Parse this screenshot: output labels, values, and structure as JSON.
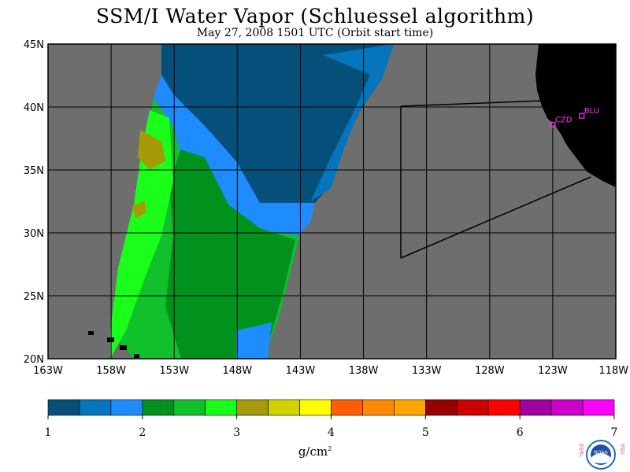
{
  "title": "SSM/I Water Vapor (Schluessel algorithm)",
  "subtitle": "May 27, 2008  1501 UTC  (Orbit start time)",
  "map": {
    "lat_labels": [
      "45N",
      "40N",
      "35N",
      "30N",
      "25N",
      "20N"
    ],
    "lon_labels": [
      "163W",
      "158W",
      "153W",
      "148W",
      "143W",
      "138W",
      "133W",
      "128W",
      "123W",
      "118W"
    ],
    "lat_range": [
      20,
      45
    ],
    "lon_range": [
      -163,
      -118
    ],
    "stations": [
      {
        "name": "CZD",
        "lon": -123.0,
        "lat": 38.6
      },
      {
        "name": "BLU",
        "lon": -120.7,
        "lat": 39.3
      }
    ],
    "colors": {
      "background": "#6e6e6e",
      "land": "#000000",
      "grid": "#000000",
      "station": "#ff33ff"
    }
  },
  "colorbar": {
    "ticks": [
      "1",
      "2",
      "3",
      "4",
      "5",
      "6",
      "7"
    ],
    "units": "g/cm",
    "units_sup": "2",
    "colors": [
      "#05507a",
      "#0575bd",
      "#1e8bff",
      "#00921d",
      "#10c12b",
      "#19ff19",
      "#a59a08",
      "#d2d200",
      "#ffff00",
      "#ff5e00",
      "#ff8a00",
      "#ffa500",
      "#990000",
      "#cc0000",
      "#ff0000",
      "#a000a0",
      "#cc00cc",
      "#ff00ff"
    ]
  },
  "logo": {
    "left_text": "ESRL",
    "right_text": "PSD",
    "center_text": "NOAA"
  }
}
